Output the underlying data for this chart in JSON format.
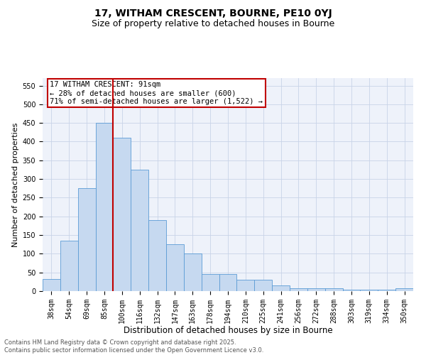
{
  "title1": "17, WITHAM CRESCENT, BOURNE, PE10 0YJ",
  "title2": "Size of property relative to detached houses in Bourne",
  "xlabel": "Distribution of detached houses by size in Bourne",
  "ylabel": "Number of detached properties",
  "categories": [
    "38sqm",
    "54sqm",
    "69sqm",
    "85sqm",
    "100sqm",
    "116sqm",
    "132sqm",
    "147sqm",
    "163sqm",
    "178sqm",
    "194sqm",
    "210sqm",
    "225sqm",
    "241sqm",
    "256sqm",
    "272sqm",
    "288sqm",
    "303sqm",
    "319sqm",
    "334sqm",
    "350sqm"
  ],
  "values": [
    33,
    135,
    275,
    450,
    410,
    325,
    190,
    125,
    100,
    45,
    45,
    30,
    30,
    15,
    8,
    8,
    8,
    3,
    3,
    3,
    8
  ],
  "bar_color": "#c6d9f0",
  "bar_edge_color": "#5b9bd5",
  "vline_x": 3.5,
  "vline_color": "#c00000",
  "annotation_text": "17 WITHAM CRESCENT: 91sqm\n← 28% of detached houses are smaller (600)\n71% of semi-detached houses are larger (1,522) →",
  "annotation_box_color": "#c00000",
  "ylim": [
    0,
    570
  ],
  "yticks": [
    0,
    50,
    100,
    150,
    200,
    250,
    300,
    350,
    400,
    450,
    500,
    550
  ],
  "grid_color": "#c8d4e8",
  "background_color": "#eef2fa",
  "footer": "Contains HM Land Registry data © Crown copyright and database right 2025.\nContains public sector information licensed under the Open Government Licence v3.0.",
  "title1_fontsize": 10,
  "title2_fontsize": 9,
  "xlabel_fontsize": 8.5,
  "ylabel_fontsize": 8,
  "tick_fontsize": 7,
  "annotation_fontsize": 7.5,
  "footer_fontsize": 6
}
